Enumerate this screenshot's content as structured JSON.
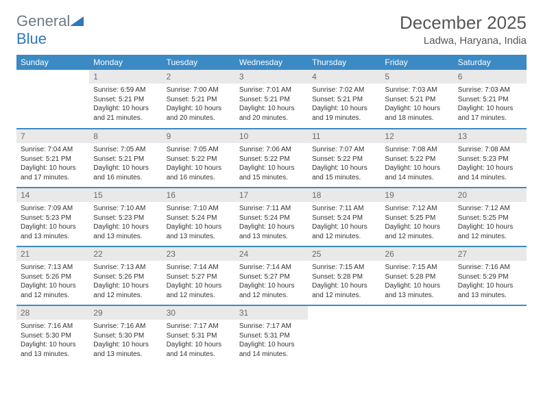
{
  "brand": {
    "text1": "General",
    "text2": "Blue"
  },
  "title": "December 2025",
  "subtitle": "Ladwa, Haryana, India",
  "colors": {
    "header_bg": "#3b8ac4",
    "header_fg": "#ffffff",
    "daynum_bg": "#e9e9e9",
    "daynum_fg": "#6a6a6a",
    "row_divider": "#3b8ac4",
    "page_bg": "#ffffff",
    "text": "#333333",
    "logo_gray": "#6b7a86",
    "logo_blue": "#2f77bb"
  },
  "weekdays": [
    "Sunday",
    "Monday",
    "Tuesday",
    "Wednesday",
    "Thursday",
    "Friday",
    "Saturday"
  ],
  "weeks": [
    [
      null,
      {
        "n": "1",
        "sr": "6:59 AM",
        "ss": "5:21 PM",
        "dl": "10 hours and 21 minutes."
      },
      {
        "n": "2",
        "sr": "7:00 AM",
        "ss": "5:21 PM",
        "dl": "10 hours and 20 minutes."
      },
      {
        "n": "3",
        "sr": "7:01 AM",
        "ss": "5:21 PM",
        "dl": "10 hours and 20 minutes."
      },
      {
        "n": "4",
        "sr": "7:02 AM",
        "ss": "5:21 PM",
        "dl": "10 hours and 19 minutes."
      },
      {
        "n": "5",
        "sr": "7:03 AM",
        "ss": "5:21 PM",
        "dl": "10 hours and 18 minutes."
      },
      {
        "n": "6",
        "sr": "7:03 AM",
        "ss": "5:21 PM",
        "dl": "10 hours and 17 minutes."
      }
    ],
    [
      {
        "n": "7",
        "sr": "7:04 AM",
        "ss": "5:21 PM",
        "dl": "10 hours and 17 minutes."
      },
      {
        "n": "8",
        "sr": "7:05 AM",
        "ss": "5:21 PM",
        "dl": "10 hours and 16 minutes."
      },
      {
        "n": "9",
        "sr": "7:05 AM",
        "ss": "5:22 PM",
        "dl": "10 hours and 16 minutes."
      },
      {
        "n": "10",
        "sr": "7:06 AM",
        "ss": "5:22 PM",
        "dl": "10 hours and 15 minutes."
      },
      {
        "n": "11",
        "sr": "7:07 AM",
        "ss": "5:22 PM",
        "dl": "10 hours and 15 minutes."
      },
      {
        "n": "12",
        "sr": "7:08 AM",
        "ss": "5:22 PM",
        "dl": "10 hours and 14 minutes."
      },
      {
        "n": "13",
        "sr": "7:08 AM",
        "ss": "5:23 PM",
        "dl": "10 hours and 14 minutes."
      }
    ],
    [
      {
        "n": "14",
        "sr": "7:09 AM",
        "ss": "5:23 PM",
        "dl": "10 hours and 13 minutes."
      },
      {
        "n": "15",
        "sr": "7:10 AM",
        "ss": "5:23 PM",
        "dl": "10 hours and 13 minutes."
      },
      {
        "n": "16",
        "sr": "7:10 AM",
        "ss": "5:24 PM",
        "dl": "10 hours and 13 minutes."
      },
      {
        "n": "17",
        "sr": "7:11 AM",
        "ss": "5:24 PM",
        "dl": "10 hours and 13 minutes."
      },
      {
        "n": "18",
        "sr": "7:11 AM",
        "ss": "5:24 PM",
        "dl": "10 hours and 12 minutes."
      },
      {
        "n": "19",
        "sr": "7:12 AM",
        "ss": "5:25 PM",
        "dl": "10 hours and 12 minutes."
      },
      {
        "n": "20",
        "sr": "7:12 AM",
        "ss": "5:25 PM",
        "dl": "10 hours and 12 minutes."
      }
    ],
    [
      {
        "n": "21",
        "sr": "7:13 AM",
        "ss": "5:26 PM",
        "dl": "10 hours and 12 minutes."
      },
      {
        "n": "22",
        "sr": "7:13 AM",
        "ss": "5:26 PM",
        "dl": "10 hours and 12 minutes."
      },
      {
        "n": "23",
        "sr": "7:14 AM",
        "ss": "5:27 PM",
        "dl": "10 hours and 12 minutes."
      },
      {
        "n": "24",
        "sr": "7:14 AM",
        "ss": "5:27 PM",
        "dl": "10 hours and 12 minutes."
      },
      {
        "n": "25",
        "sr": "7:15 AM",
        "ss": "5:28 PM",
        "dl": "10 hours and 12 minutes."
      },
      {
        "n": "26",
        "sr": "7:15 AM",
        "ss": "5:28 PM",
        "dl": "10 hours and 13 minutes."
      },
      {
        "n": "27",
        "sr": "7:16 AM",
        "ss": "5:29 PM",
        "dl": "10 hours and 13 minutes."
      }
    ],
    [
      {
        "n": "28",
        "sr": "7:16 AM",
        "ss": "5:30 PM",
        "dl": "10 hours and 13 minutes."
      },
      {
        "n": "29",
        "sr": "7:16 AM",
        "ss": "5:30 PM",
        "dl": "10 hours and 13 minutes."
      },
      {
        "n": "30",
        "sr": "7:17 AM",
        "ss": "5:31 PM",
        "dl": "10 hours and 14 minutes."
      },
      {
        "n": "31",
        "sr": "7:17 AM",
        "ss": "5:31 PM",
        "dl": "10 hours and 14 minutes."
      },
      null,
      null,
      null
    ]
  ],
  "labels": {
    "sunrise": "Sunrise: ",
    "sunset": "Sunset: ",
    "daylight": "Daylight: "
  }
}
